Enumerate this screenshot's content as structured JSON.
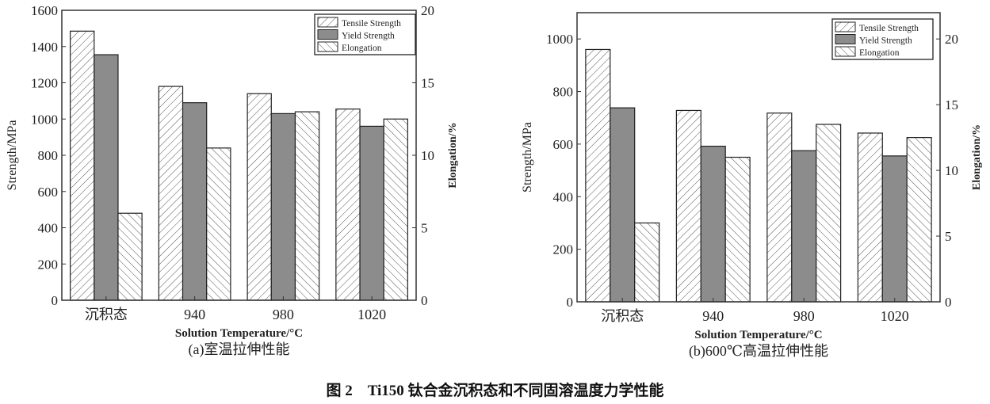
{
  "figure_title": "图 2　Ti150 钛合金沉积态和不同固溶温度力学性能",
  "colors": {
    "yield_fill": "#8c8c8c",
    "hatch": "#555555",
    "axis": "#333333"
  },
  "chart_data": [
    {
      "type": "bar",
      "caption": "(a)室温拉伸性能",
      "categories": [
        "沉积态",
        "940",
        "980",
        "1020"
      ],
      "xlabel": "Solution Temperature/°C",
      "ylabel": "Strength/MPa",
      "y2label": "Elongation/%",
      "ylim": [
        0,
        1600
      ],
      "yticks": [
        0,
        200,
        400,
        600,
        800,
        1000,
        1200,
        1400,
        1600
      ],
      "y2lim": [
        0,
        20
      ],
      "y2ticks": [
        0,
        5,
        10,
        15,
        20
      ],
      "legend_position": "top-right",
      "series": [
        {
          "name": "Tensile Strength",
          "axis": "left",
          "pattern": "hatch-forward",
          "values": [
            1485,
            1180,
            1140,
            1055
          ]
        },
        {
          "name": "Yield Strength",
          "axis": "left",
          "pattern": "solid-gray",
          "values": [
            1355,
            1090,
            1030,
            960
          ]
        },
        {
          "name": "Elongation",
          "axis": "right",
          "pattern": "hatch-back",
          "values": [
            6.0,
            10.5,
            13.0,
            12.5
          ]
        }
      ]
    },
    {
      "type": "bar",
      "caption": "(b)600℃高温拉伸性能",
      "categories": [
        "沉积态",
        "940",
        "980",
        "1020"
      ],
      "xlabel": "Solution Temperature/°C",
      "ylabel": "Strength/MPa",
      "y2label": "Elongation/%",
      "ylim": [
        0,
        1100
      ],
      "yticks": [
        0,
        200,
        400,
        600,
        800,
        1000
      ],
      "y2lim": [
        0,
        22
      ],
      "y2ticks": [
        0,
        5,
        10,
        15,
        20
      ],
      "legend_position": "top-right",
      "series": [
        {
          "name": "Tensile Strength",
          "axis": "left",
          "pattern": "hatch-forward",
          "values": [
            960,
            728,
            718,
            642
          ]
        },
        {
          "name": "Yield Strength",
          "axis": "left",
          "pattern": "solid-gray",
          "values": [
            738,
            592,
            575,
            555
          ]
        },
        {
          "name": "Elongation",
          "axis": "right",
          "pattern": "hatch-back",
          "values": [
            6.0,
            11.0,
            13.5,
            12.5
          ]
        }
      ]
    }
  ]
}
